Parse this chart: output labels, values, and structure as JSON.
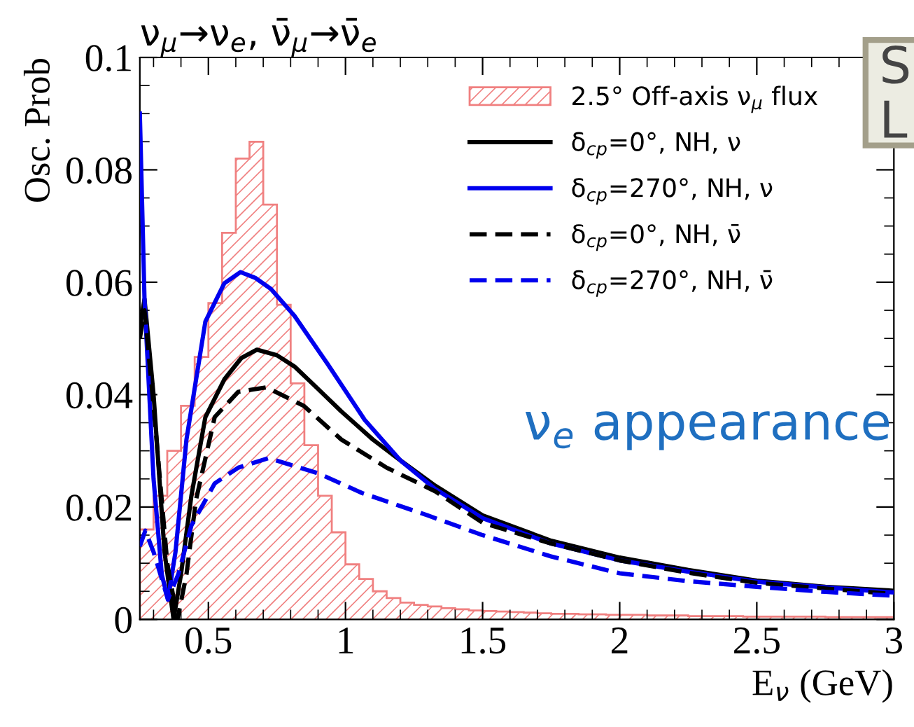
{
  "chart_data": {
    "type": "line",
    "title": "ν$_{μ}$→ν$_{e}$, ν̄$_{μ}$→ν̄$_{e}$",
    "xlabel": "E$_{ν}$ (GeV)",
    "ylabel": "Osc. Prob",
    "annotations": [
      "ν$_{e}$ appearance",
      "S",
      "L"
    ],
    "xlim": [
      0.25,
      3
    ],
    "ylim": [
      0,
      0.1
    ],
    "xticks": [
      0.5,
      1,
      1.5,
      2,
      2.5,
      3
    ],
    "yticks": [
      0,
      0.02,
      0.04,
      0.06,
      0.08,
      0.1
    ],
    "grid": false,
    "legend": "top right",
    "series": [
      {
        "type": "histogram",
        "name": "2.5° Off-axis ν$_{μ}$ flux",
        "color": "#f08080",
        "bins": [
          0.25,
          0.3,
          0.35,
          0.4,
          0.45,
          0.5,
          0.55,
          0.6,
          0.65,
          0.7,
          0.75,
          0.8,
          0.85,
          0.9,
          0.95,
          1.0,
          1.05,
          1.1,
          1.15,
          1.2,
          1.25,
          1.3,
          1.35,
          1.4,
          1.45,
          1.5,
          1.55,
          1.6,
          1.65,
          1.7,
          1.75,
          1.8,
          1.85,
          1.9,
          1.95,
          2.0,
          2.05,
          2.1,
          2.15,
          2.2,
          2.25,
          2.3,
          2.35,
          2.4,
          2.45,
          2.5,
          2.55,
          2.6,
          2.65,
          2.7,
          2.75,
          2.8,
          2.85,
          2.9,
          2.95,
          3.0
        ],
        "values": [
          0.016,
          0.022,
          0.03,
          0.038,
          0.0467,
          0.0563,
          0.0688,
          0.082,
          0.085,
          0.0738,
          0.056,
          0.042,
          0.031,
          0.022,
          0.0155,
          0.0098,
          0.0072,
          0.005,
          0.0038,
          0.003,
          0.0026,
          0.0023,
          0.002,
          0.0018,
          0.0016,
          0.0015,
          0.0014,
          0.0013,
          0.0012,
          0.0011,
          0.001,
          0.001,
          0.0009,
          0.0009,
          0.0008,
          0.0008,
          0.0008,
          0.0007,
          0.0007,
          0.0007,
          0.0006,
          0.0006,
          0.0006,
          0.0006,
          0.0005,
          0.0005,
          0.0005,
          0.0005,
          0.0005,
          0.0005,
          0.0004,
          0.0004,
          0.0004,
          0.0004,
          0.0004
        ]
      },
      {
        "name": "δ$_{cp}$=0°, NH, ν",
        "color": "#000000",
        "line_style": "solid",
        "x": [
          0.25,
          0.267,
          0.3,
          0.34,
          0.373,
          0.4,
          0.438,
          0.489,
          0.558,
          0.62,
          0.677,
          0.75,
          0.814,
          0.9,
          0.985,
          1.1,
          1.2,
          1.327,
          1.5,
          1.75,
          2.0,
          2.25,
          2.5,
          2.75,
          3.0
        ],
        "values": [
          0.052,
          0.057,
          0.04,
          0.012,
          0.0,
          0.008,
          0.022,
          0.036,
          0.0427,
          0.0465,
          0.048,
          0.047,
          0.045,
          0.041,
          0.037,
          0.032,
          0.0283,
          0.0238,
          0.0185,
          0.014,
          0.011,
          0.0088,
          0.0069,
          0.0058,
          0.0051
        ]
      },
      {
        "name": "δ$_{cp}$=270°, NH, ν",
        "color": "#0000ee",
        "line_style": "solid",
        "x": [
          0.25,
          0.267,
          0.3,
          0.33,
          0.3525,
          0.38,
          0.42,
          0.489,
          0.558,
          0.617,
          0.67,
          0.728,
          0.814,
          0.934,
          1.07,
          1.2,
          1.327,
          1.5,
          1.75,
          2.0,
          2.25,
          2.5,
          2.75,
          3.0
        ],
        "values": [
          0.09,
          0.057,
          0.025,
          0.008,
          0.0035,
          0.012,
          0.032,
          0.053,
          0.0598,
          0.0618,
          0.0608,
          0.0588,
          0.054,
          0.0455,
          0.0355,
          0.0283,
          0.0232,
          0.018,
          0.0135,
          0.0105,
          0.0085,
          0.0067,
          0.0057,
          0.0048
        ]
      },
      {
        "name": "δ$_{cp}$=0°, NH, ν̄",
        "color": "#000000",
        "line_style": "dashed",
        "x": [
          0.25,
          0.267,
          0.3,
          0.35,
          0.387,
          0.42,
          0.455,
          0.523,
          0.609,
          0.712,
          0.848,
          0.985,
          1.15,
          1.327,
          1.5,
          1.75,
          2.0,
          2.25,
          2.5,
          2.75,
          3.0
        ],
        "values": [
          0.05,
          0.055,
          0.038,
          0.01,
          0.0,
          0.008,
          0.0213,
          0.036,
          0.0405,
          0.0413,
          0.038,
          0.032,
          0.027,
          0.0228,
          0.0172,
          0.0135,
          0.0105,
          0.0083,
          0.0065,
          0.0055,
          0.0045
        ]
      },
      {
        "name": "δ$_{cp}$=270°, NH, ν̄",
        "color": "#0000ee",
        "line_style": "dashed",
        "x": [
          0.25,
          0.27,
          0.3,
          0.3525,
          0.39,
          0.438,
          0.523,
          0.609,
          0.72,
          0.9,
          1.06,
          1.3,
          1.5,
          1.75,
          2.0,
          2.25,
          2.5,
          2.75,
          3.0
        ],
        "values": [
          0.013,
          0.0158,
          0.012,
          0.0036,
          0.008,
          0.0167,
          0.0242,
          0.027,
          0.0287,
          0.026,
          0.0225,
          0.0185,
          0.015,
          0.0112,
          0.0082,
          0.0068,
          0.0058,
          0.0049,
          0.0042
        ]
      }
    ]
  }
}
